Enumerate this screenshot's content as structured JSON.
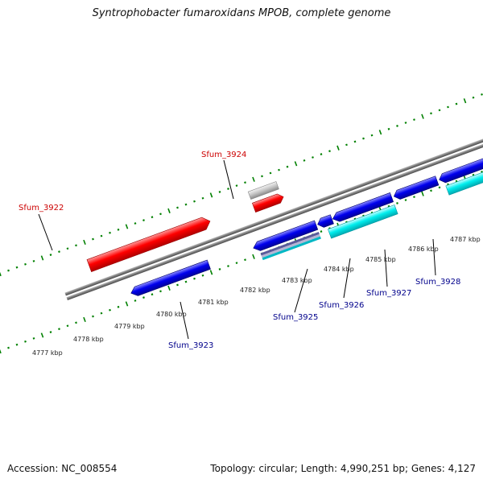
{
  "title": "Syntrophobacter fumaroxidans MPOB, complete genome",
  "footer": {
    "accession": "Accession: NC_008554",
    "stats": "Topology: circular; Length: 4,990,251 bp; Genes: 4,127"
  },
  "colors": {
    "forward_gene": "#ff0000",
    "reverse_gene": "#0000ee",
    "rna_gene": "#00e5ee",
    "pseudo_gene": "#c0c0c0",
    "backbone": "#808080",
    "tick": "#008000",
    "label_forward": "#cc0000",
    "label_reverse": "#00008b"
  },
  "scale_labels": [
    "4777 kbp",
    "4778 kbp",
    "4779 kbp",
    "4780 kbp",
    "4781 kbp",
    "4782 kbp",
    "4783 kbp",
    "4784 kbp",
    "4785 kbp",
    "4786 kbp",
    "4787 kbp"
  ],
  "gene_labels": {
    "sfum_3922": "Sfum_3922",
    "sfum_3923": "Sfum_3923",
    "sfum_3924": "Sfum_3924",
    "sfum_3925": "Sfum_3925",
    "sfum_3926": "Sfum_3926",
    "sfum_3927": "Sfum_3927",
    "sfum_3928": "Sfum_3928"
  }
}
